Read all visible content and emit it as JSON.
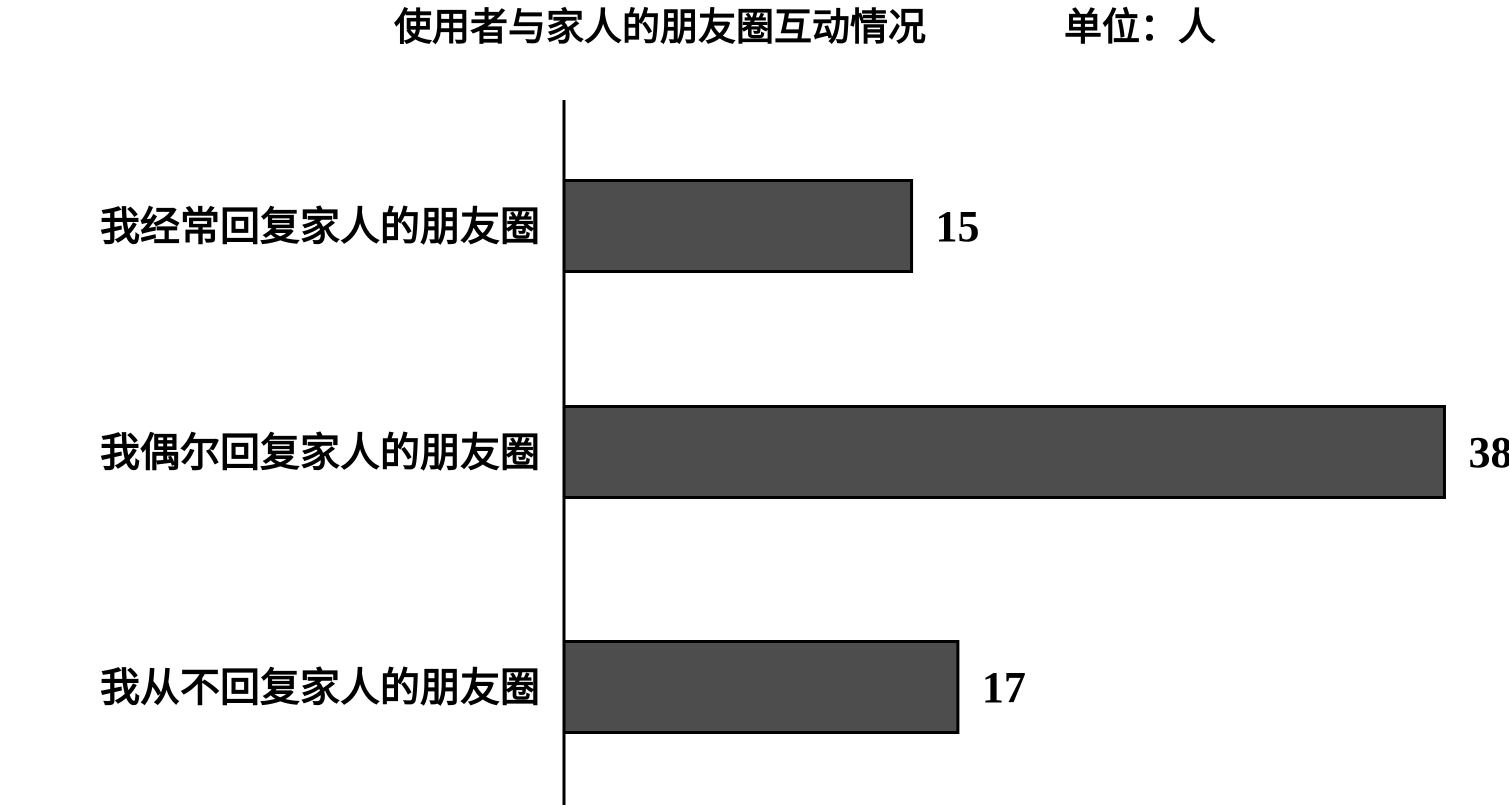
{
  "chart_data": {
    "type": "bar",
    "orientation": "horizontal",
    "title": "使用者与家人的朋友圈互动情况",
    "unit_label": "单位：人",
    "categories": [
      "我经常回复家人的朋友圈",
      "我偶尔回复家人的朋友圈",
      "我从不回复家人的朋友圈"
    ],
    "values": [
      15,
      38,
      17
    ],
    "data_labels": [
      "15",
      "38",
      "17"
    ],
    "xlim": [
      0,
      38.5
    ],
    "grid": false,
    "legend": "none",
    "colors": {
      "bar_fill": "#4d4d4d",
      "bar_stroke": "#000000",
      "axis": "#000000"
    }
  }
}
